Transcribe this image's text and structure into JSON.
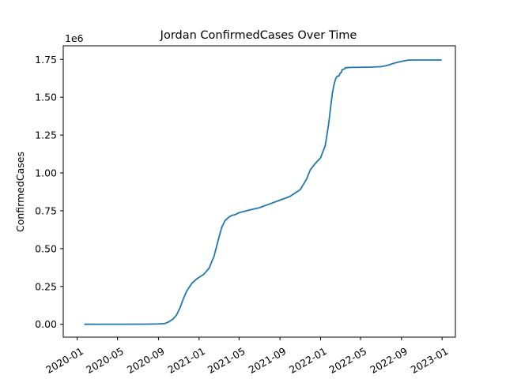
{
  "chart_data": {
    "type": "line",
    "title": "Jordan  ConfirmedCases Over Time",
    "xlabel": "",
    "ylabel": "ConfirmedCases",
    "offset_label": "1e6",
    "x_tick_labels": [
      "2020-01",
      "2020-05",
      "2020-09",
      "2021-01",
      "2021-05",
      "2021-09",
      "2022-01",
      "2022-05",
      "2022-09",
      "2023-01"
    ],
    "x_tick_dates": [
      "2020-01-01",
      "2020-05-01",
      "2020-09-01",
      "2021-01-01",
      "2021-05-01",
      "2021-09-01",
      "2022-01-01",
      "2022-05-01",
      "2022-09-01",
      "2023-01-01"
    ],
    "y_tick_labels": [
      "0.00",
      "0.25",
      "0.50",
      "0.75",
      "1.00",
      "1.25",
      "1.50",
      "1.75"
    ],
    "y_tick_values": [
      0,
      250000,
      500000,
      750000,
      1000000,
      1250000,
      1500000,
      1750000
    ],
    "xlim": [
      "2019-11-20",
      "2023-02-10"
    ],
    "ylim": [
      -85000,
      1840000
    ],
    "grid": false,
    "color": "#1f77b4",
    "series": [
      {
        "x": [
          "2020-01-22",
          "2020-05-01",
          "2020-08-01",
          "2020-09-01",
          "2020-09-20",
          "2020-10-01",
          "2020-10-15",
          "2020-10-25",
          "2020-11-05",
          "2020-11-15",
          "2020-11-25",
          "2020-12-10",
          "2020-12-25",
          "2021-01-15",
          "2021-01-31",
          "2021-02-15",
          "2021-02-28",
          "2021-03-10",
          "2021-03-20",
          "2021-03-31",
          "2021-04-10",
          "2021-04-20",
          "2021-05-01",
          "2021-05-15",
          "2021-06-01",
          "2021-07-01",
          "2021-08-01",
          "2021-09-01",
          "2021-10-01",
          "2021-11-01",
          "2021-11-20",
          "2021-12-01",
          "2021-12-15",
          "2022-01-01",
          "2022-01-15",
          "2022-01-25",
          "2022-01-31",
          "2022-02-05",
          "2022-02-10",
          "2022-02-15",
          "2022-02-20",
          "2022-02-25",
          "2022-03-01",
          "2022-03-05",
          "2022-03-06",
          "2022-03-10",
          "2022-03-15",
          "2022-03-16",
          "2022-04-01",
          "2022-05-01",
          "2022-06-01",
          "2022-07-01",
          "2022-07-20",
          "2022-08-10",
          "2022-09-01",
          "2022-09-20",
          "2022-10-01",
          "2022-11-01",
          "2022-12-01",
          "2022-12-31"
        ],
        "y": [
          0,
          500,
          1200,
          2500,
          5000,
          15000,
          35000,
          60000,
          110000,
          170000,
          220000,
          270000,
          300000,
          330000,
          370000,
          450000,
          560000,
          640000,
          685000,
          707000,
          720000,
          725000,
          737000,
          745000,
          755000,
          770000,
          795000,
          820000,
          845000,
          890000,
          960000,
          1020000,
          1060000,
          1100000,
          1180000,
          1320000,
          1430000,
          1520000,
          1580000,
          1620000,
          1640000,
          1640000,
          1660000,
          1665000,
          1680000,
          1685000,
          1688000,
          1695000,
          1697000,
          1698000,
          1699000,
          1702000,
          1710000,
          1725000,
          1737000,
          1745000,
          1746000,
          1746000,
          1746000,
          1746000
        ]
      }
    ]
  }
}
